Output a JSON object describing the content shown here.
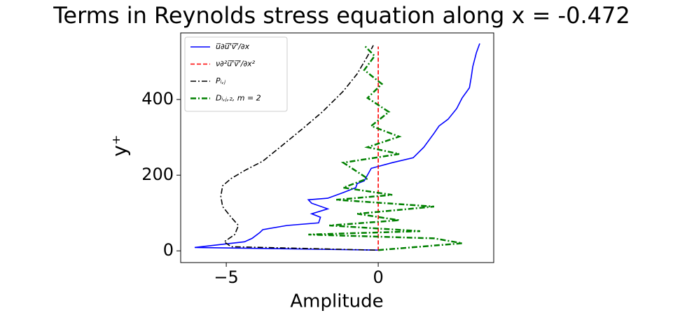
{
  "chart_data": {
    "type": "line",
    "title": "Terms in Reynolds stress equation along x = -0.472",
    "x_label": "Amplitude",
    "y_label": "y⁺",
    "xlim": [
      -6.5,
      3.8
    ],
    "ylim": [
      -31,
      576
    ],
    "xticks": [
      {
        "value": -5,
        "label": "−5"
      },
      0
    ],
    "yticks": [
      0,
      200,
      400
    ],
    "grid": false,
    "legend": "upper left",
    "series": [
      {
        "name": "u̅∂u̅'̅v̅'̅/∂x",
        "color": "#0000ff",
        "linestyle": "solid",
        "linewidth": 1.6,
        "y": [
          2,
          9,
          24,
          33,
          48,
          56,
          67,
          74,
          89,
          98,
          111,
          126,
          135,
          139,
          154,
          167,
          178,
          185,
          218,
          233,
          246,
          274,
          311,
          330,
          348,
          376,
          404,
          431,
          459,
          487,
          524,
          548
        ],
        "values": [
          0,
          -6.04,
          -4.4,
          -4.15,
          -3.9,
          -3.8,
          -3.0,
          -1.96,
          -1.9,
          -2.19,
          -1.66,
          -2.19,
          -2.3,
          -1.66,
          -1.15,
          -0.74,
          -0.69,
          -0.46,
          -0.23,
          0.46,
          1.15,
          1.5,
          1.84,
          2.0,
          2.3,
          2.58,
          2.76,
          3.0,
          3.06,
          3.11,
          3.23,
          3.34
        ]
      },
      {
        "name": "ν∂²u̅'̅v̅'̅/∂x²",
        "color": "#ff0000",
        "linestyle": "dashed",
        "linewidth": 1.6,
        "y": [
          0,
          180,
          360,
          540
        ],
        "values": [
          0,
          0,
          0,
          0
        ]
      },
      {
        "name": "Pᵢ,ⱼ",
        "color": "#000000",
        "linestyle": "dashdot",
        "linewidth": 1.6,
        "y": [
          2,
          11,
          24,
          43,
          67,
          89,
          117,
          144,
          172,
          191,
          213,
          237,
          274,
          320,
          367,
          422,
          468,
          515,
          543
        ],
        "values": [
          -0.1,
          -4.84,
          -5.07,
          -4.72,
          -4.6,
          -4.84,
          -5.12,
          -5.18,
          -5.12,
          -4.84,
          -4.38,
          -3.8,
          -3.23,
          -2.53,
          -1.84,
          -1.15,
          -0.69,
          -0.35,
          -0.16
        ]
      },
      {
        "name": "Dᵢ,ⱼ,₂, m = 2",
        "color": "#008000",
        "linestyle": "dashdot",
        "linewidth": 2.5,
        "y": [
          2,
          20,
          33,
          43,
          52,
          67,
          81,
          98,
          117,
          135,
          148,
          167,
          191,
          233,
          256,
          274,
          302,
          330,
          367,
          404,
          441,
          478,
          515,
          543
        ],
        "values": [
          0,
          2.76,
          1.84,
          -2.3,
          1.38,
          -1.61,
          0.69,
          -0.69,
          1.84,
          -1.38,
          0.46,
          -1.15,
          -0.35,
          -1.15,
          0.69,
          -0.35,
          0.69,
          -0.23,
          0.35,
          -0.35,
          0.12,
          -0.46,
          -0.12,
          -0.46
        ]
      }
    ]
  }
}
